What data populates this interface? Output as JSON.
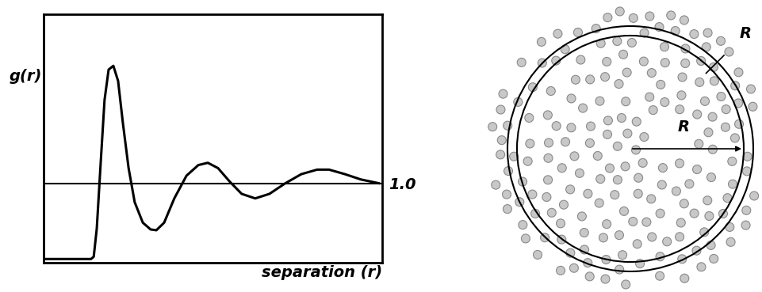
{
  "chart_data": {
    "type": "line",
    "x_label": "separation (r)",
    "y_label": "g(r)",
    "x": [
      0,
      1.4,
      1.48,
      1.57,
      1.69,
      1.8,
      1.92,
      2.06,
      2.2,
      2.34,
      2.51,
      2.69,
      2.93,
      3.16,
      3.33,
      3.56,
      3.86,
      4.22,
      4.57,
      4.85,
      5.15,
      5.5,
      5.85,
      6.25,
      6.67,
      7.14,
      7.61,
      8.08,
      8.43,
      8.9,
      9.37,
      9.9
    ],
    "values": [
      0,
      0,
      0.03,
      0.4,
      1.3,
      2.1,
      2.5,
      2.55,
      2.35,
      1.8,
      1.2,
      0.75,
      0.48,
      0.39,
      0.38,
      0.48,
      0.8,
      1.1,
      1.24,
      1.27,
      1.2,
      1.02,
      0.86,
      0.8,
      0.86,
      1.0,
      1.12,
      1.18,
      1.18,
      1.12,
      1.05,
      1.0
    ],
    "color": "#000000",
    "xlim": [
      0,
      10
    ],
    "ylim": [
      -0.05,
      3.23
    ],
    "yticks": [
      {
        "value": 1.0,
        "label": "1.0"
      }
    ],
    "grid": true,
    "tick_labels": "y"
  },
  "diagram": {
    "shell_label": "R",
    "radius_label": "R"
  }
}
